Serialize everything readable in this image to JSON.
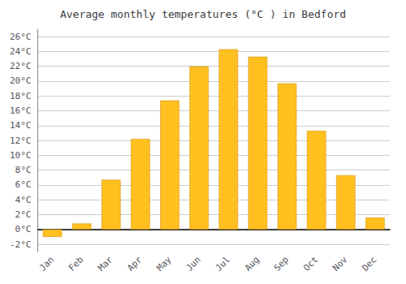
{
  "chart_data": {
    "type": "bar",
    "title": "Average monthly temperatures (°C ) in Bedford",
    "categories": [
      "Jan",
      "Feb",
      "Mar",
      "Apr",
      "May",
      "Jun",
      "Jul",
      "Aug",
      "Sep",
      "Oct",
      "Nov",
      "Dec"
    ],
    "values": [
      -1.0,
      0.8,
      6.7,
      12.2,
      17.4,
      22.0,
      24.3,
      23.3,
      19.7,
      13.3,
      7.3,
      1.6
    ],
    "color": "#FFC020",
    "ylim": [
      -3,
      27
    ],
    "yticks": [
      {
        "value": -2,
        "label": "-2°C"
      },
      {
        "value": 0,
        "label": "0°C"
      },
      {
        "value": 2,
        "label": "2°C"
      },
      {
        "value": 4,
        "label": "4°C"
      },
      {
        "value": 6,
        "label": "6°C"
      },
      {
        "value": 8,
        "label": "8°C"
      },
      {
        "value": 10,
        "label": "10°C"
      },
      {
        "value": 12,
        "label": "12°C"
      },
      {
        "value": 14,
        "label": "14°C"
      },
      {
        "value": 16,
        "label": "16°C"
      },
      {
        "value": 18,
        "label": "18°C"
      },
      {
        "value": 20,
        "label": "20°C"
      },
      {
        "value": 22,
        "label": "22°C"
      },
      {
        "value": 24,
        "label": "24°C"
      },
      {
        "value": 26,
        "label": "26°C"
      }
    ],
    "grid": true
  }
}
